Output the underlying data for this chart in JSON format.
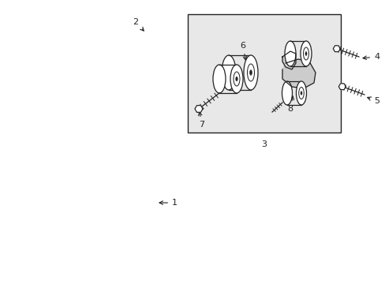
{
  "bg_color": "#ffffff",
  "box_bg_color": "#e8e8e8",
  "line_color": "#222222",
  "fig_width": 4.89,
  "fig_height": 3.6,
  "dpi": 100,
  "belt_lw": 1.3,
  "part_lw": 0.9,
  "label_fs": 8
}
